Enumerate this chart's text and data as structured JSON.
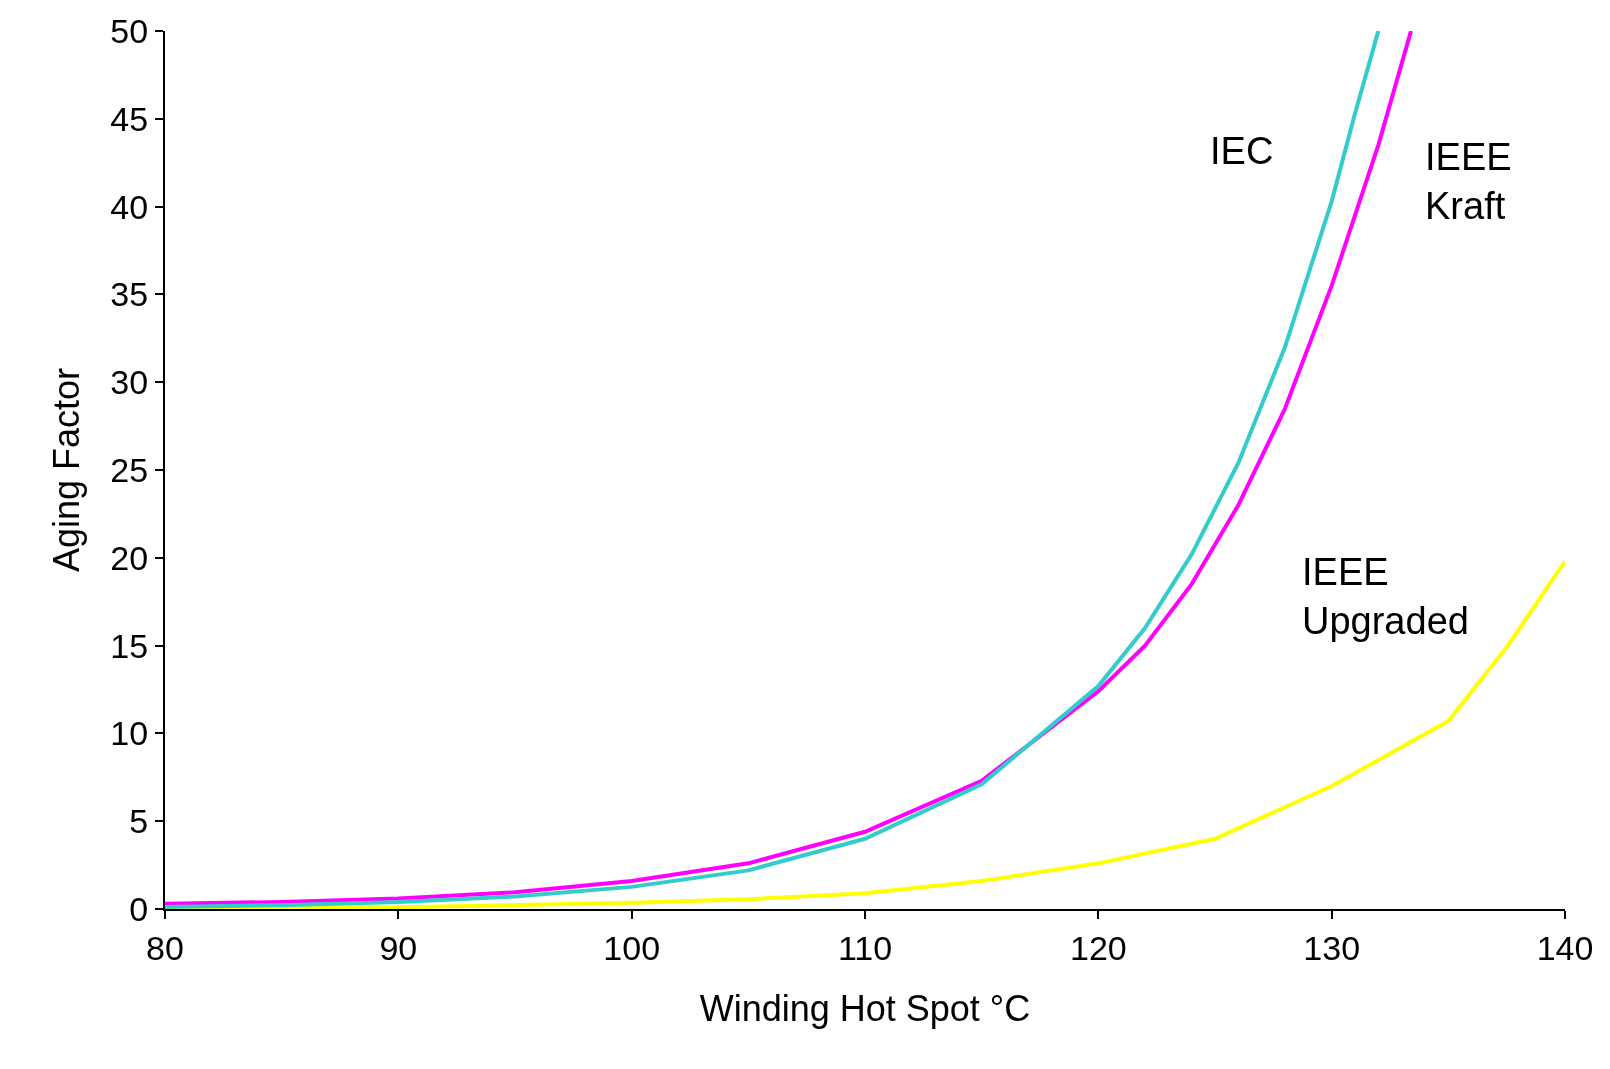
{
  "chart_data": {
    "type": "line",
    "xlabel": "Winding Hot Spot °C",
    "ylabel": "Aging Factor",
    "xlim": [
      80,
      140
    ],
    "xticks": [
      80,
      90,
      100,
      110,
      120,
      130,
      140
    ],
    "ylim": [
      0,
      50
    ],
    "yticks": [
      0,
      5,
      10,
      15,
      20,
      25,
      30,
      35,
      40,
      45,
      50
    ],
    "legend": false,
    "marker": "none",
    "line_style": "solid",
    "series": [
      {
        "name": "IEEE Kraft",
        "color": "#ff00ff",
        "x": [
          80,
          85,
          90,
          95,
          100,
          105,
          110,
          115,
          120,
          122,
          124,
          126,
          128,
          130,
          132,
          133.4
        ],
        "values": [
          0.3,
          0.4,
          0.6,
          0.95,
          1.6,
          2.6,
          4.4,
          7.3,
          12.4,
          15,
          18.5,
          23,
          28.5,
          35.5,
          43.5,
          50
        ]
      },
      {
        "name": "IEEE Upgraded",
        "color": "#ffff00",
        "x": [
          80,
          90,
          100,
          105,
          110,
          115,
          120,
          125,
          130,
          135,
          137.5,
          140
        ],
        "values": [
          0.05,
          0.1,
          0.35,
          0.55,
          0.9,
          1.6,
          2.6,
          4,
          7,
          10.7,
          14.9,
          19.8
        ]
      },
      {
        "name": "IEC",
        "color": "#33cccc",
        "x": [
          80,
          85,
          90,
          95,
          100,
          105,
          110,
          115,
          120,
          122,
          124,
          126,
          128,
          130,
          131,
          132
        ],
        "values": [
          0.12,
          0.22,
          0.4,
          0.71,
          1.26,
          2.2,
          4,
          7.1,
          12.7,
          16,
          20.2,
          25.4,
          32,
          40.3,
          45.3,
          50
        ]
      }
    ]
  }
}
